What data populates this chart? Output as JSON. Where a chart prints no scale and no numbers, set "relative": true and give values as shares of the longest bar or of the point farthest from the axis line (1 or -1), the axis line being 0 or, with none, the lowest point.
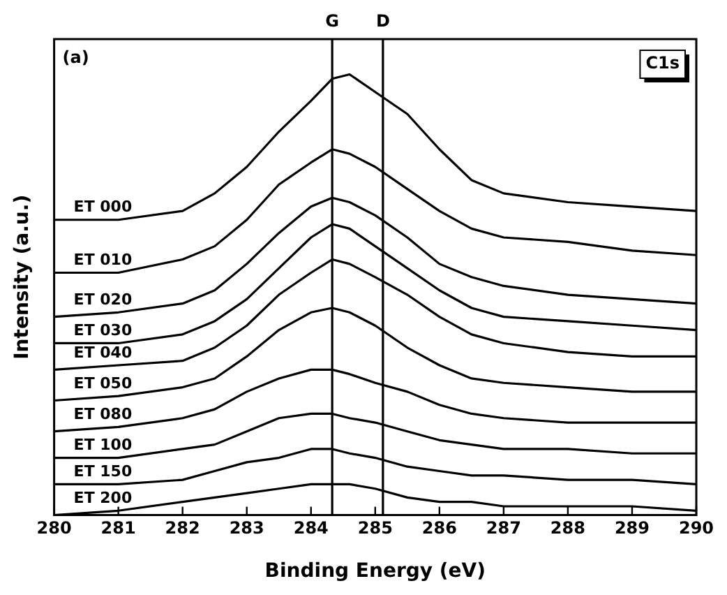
{
  "chart_data": {
    "type": "line",
    "relative": true,
    "xlabel": "Binding Energy (eV)",
    "ylabel": "Intensity (a.u.)",
    "x": [
      280,
      281,
      282,
      282.5,
      283,
      283.5,
      284,
      284.33,
      284.6,
      285,
      285.5,
      286,
      286.5,
      287,
      288,
      289,
      290
    ],
    "xlim": [
      280,
      290
    ],
    "xticks": [
      280,
      281,
      282,
      283,
      284,
      285,
      286,
      287,
      288,
      289,
      290
    ],
    "grid": false,
    "legend": false,
    "marker": "none",
    "line_style": "solid",
    "annotations": [
      "(a)",
      "C1s"
    ],
    "ref_lines": [
      {
        "axis": "x",
        "value": 284.33,
        "label": "G",
        "color": "#000000"
      },
      {
        "axis": "x",
        "value": 285.12,
        "label": "D",
        "color": "#000000"
      }
    ],
    "series": [
      {
        "name": "ET 000",
        "color": "#000000",
        "values": [
          0.67,
          0.67,
          0.69,
          0.73,
          0.79,
          0.87,
          0.94,
          0.99,
          1,
          0.96,
          0.91,
          0.83,
          0.76,
          0.73,
          0.71,
          0.7,
          0.69
        ]
      },
      {
        "name": "ET 010",
        "color": "#000000",
        "values": [
          0.55,
          0.55,
          0.58,
          0.61,
          0.67,
          0.75,
          0.8,
          0.83,
          0.82,
          0.79,
          0.74,
          0.69,
          0.65,
          0.63,
          0.62,
          0.6,
          0.59
        ]
      },
      {
        "name": "ET 020",
        "color": "#000000",
        "values": [
          0.45,
          0.46,
          0.48,
          0.51,
          0.57,
          0.64,
          0.7,
          0.72,
          0.71,
          0.68,
          0.63,
          0.57,
          0.54,
          0.52,
          0.5,
          0.49,
          0.48
        ]
      },
      {
        "name": "ET 030",
        "color": "#000000",
        "values": [
          0.39,
          0.39,
          0.41,
          0.44,
          0.49,
          0.56,
          0.63,
          0.66,
          0.65,
          0.61,
          0.56,
          0.51,
          0.47,
          0.45,
          0.44,
          0.43,
          0.42
        ]
      },
      {
        "name": "ET 040",
        "color": "#000000",
        "values": [
          0.33,
          0.34,
          0.35,
          0.38,
          0.43,
          0.5,
          0.55,
          0.58,
          0.57,
          0.54,
          0.5,
          0.45,
          0.41,
          0.39,
          0.37,
          0.36,
          0.36
        ]
      },
      {
        "name": "ET 050",
        "color": "#000000",
        "values": [
          0.26,
          0.27,
          0.29,
          0.31,
          0.36,
          0.42,
          0.46,
          0.47,
          0.46,
          0.43,
          0.38,
          0.34,
          0.31,
          0.3,
          0.29,
          0.28,
          0.28
        ]
      },
      {
        "name": "ET 080",
        "color": "#000000",
        "values": [
          0.19,
          0.2,
          0.22,
          0.24,
          0.28,
          0.31,
          0.33,
          0.33,
          0.32,
          0.3,
          0.28,
          0.25,
          0.23,
          0.22,
          0.21,
          0.21,
          0.21
        ]
      },
      {
        "name": "ET 100",
        "color": "#000000",
        "values": [
          0.13,
          0.13,
          0.15,
          0.16,
          0.19,
          0.22,
          0.23,
          0.23,
          0.22,
          0.21,
          0.19,
          0.17,
          0.16,
          0.15,
          0.15,
          0.14,
          0.14
        ]
      },
      {
        "name": "ET 150",
        "color": "#000000",
        "values": [
          0.07,
          0.07,
          0.08,
          0.1,
          0.12,
          0.13,
          0.15,
          0.15,
          0.14,
          0.13,
          0.11,
          0.1,
          0.09,
          0.09,
          0.08,
          0.08,
          0.07
        ]
      },
      {
        "name": "ET 200",
        "color": "#000000",
        "values": [
          0,
          0.01,
          0.03,
          0.04,
          0.05,
          0.06,
          0.07,
          0.07,
          0.07,
          0.06,
          0.04,
          0.03,
          0.03,
          0.02,
          0.02,
          0.02,
          0.01
        ]
      }
    ]
  }
}
